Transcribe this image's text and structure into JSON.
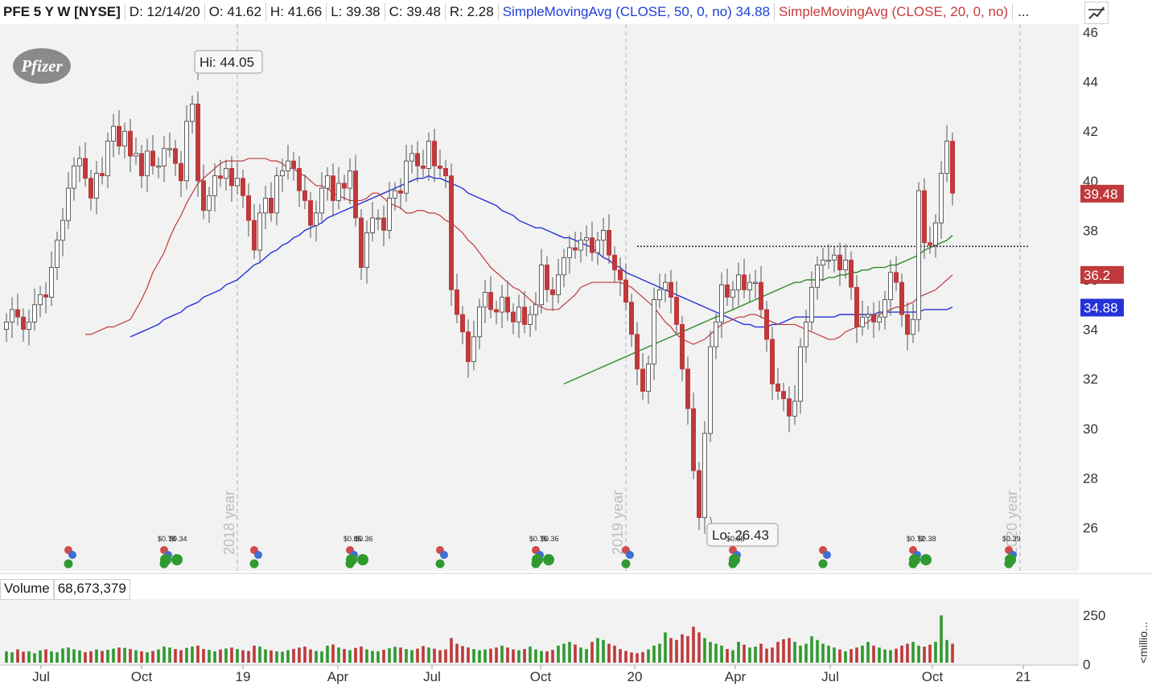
{
  "header": {
    "symbol": "PFE 5 Y W [NYSE]",
    "date": "D: 12/14/20",
    "open": "O: 41.62",
    "high": "H: 41.66",
    "low": "L: 39.38",
    "close": "C: 39.48",
    "range": "R: 2.28",
    "sma50_label": "SimpleMovingAvg (CLOSE, 50, 0, no)",
    "sma50_value": "34.88",
    "sma20_label": "SimpleMovingAvg (CLOSE, 20, 0, no)",
    "more": "..."
  },
  "logo_text": "Pfizer",
  "volume": {
    "label": "Volume",
    "value": "68,673,379",
    "unit": "<millio..."
  },
  "colors": {
    "up": "#2f9a2f",
    "down": "#c0393b",
    "sma20": "#c0393b",
    "sma50": "#2532d8",
    "sma200": "#2e8b2e",
    "panel_bg": "#f2f2f2"
  },
  "chart_data": {
    "type": "candlestick",
    "title": "PFE 5 Y W [NYSE]",
    "ylim": [
      24.8,
      46.4
    ],
    "y_ticks": [
      "26",
      "28",
      "30",
      "32",
      "34",
      "36",
      "38",
      "40",
      "42",
      "44",
      "46"
    ],
    "x_labels": [
      "Jul",
      "Oct",
      "19",
      "Apr",
      "Jul",
      "Oct",
      "20",
      "Apr",
      "Jul",
      "Oct",
      "21"
    ],
    "year_markers": [
      "2018 year",
      "2019 year",
      "2020 year"
    ],
    "annotations": {
      "high": "Hi: 44.05",
      "low": "Lo: 26.43"
    },
    "resistance_level": 37.35,
    "price_badges": [
      {
        "label": "39.48",
        "value": 39.48,
        "color": "#c0393b"
      },
      {
        "label": "36.2",
        "value": 36.2,
        "color": "#c0393b"
      },
      {
        "label": "34.88",
        "value": 34.88,
        "color": "#2532d8"
      }
    ],
    "dividends": [
      {
        "label": "$0.78",
        "period": 28
      },
      {
        "label": "$0.34",
        "period": 30
      },
      {
        "label": "$0.85",
        "period": 61
      },
      {
        "label": "$0.36",
        "period": 63
      },
      {
        "label": "$0.75",
        "period": 94
      },
      {
        "label": "$0.36",
        "period": 96
      },
      {
        "label": "$0.38",
        "period": 129
      },
      {
        "label": "$0.72",
        "period": 161
      },
      {
        "label": "$0.38",
        "period": 163
      },
      {
        "label": "$0.39",
        "period": 178
      }
    ],
    "earnings_periods": [
      11,
      28,
      44,
      61,
      77,
      94,
      110,
      129,
      145,
      161,
      178
    ],
    "volume_ticks": [
      "250",
      "0"
    ],
    "volume_ylim": [
      0,
      340
    ],
    "closes": [
      34.3,
      34.8,
      34.5,
      34.0,
      34.3,
      35.0,
      35.4,
      35.3,
      36.5,
      37.6,
      38.4,
      39.7,
      40.6,
      40.9,
      40.1,
      39.3,
      40.3,
      40.2,
      41.6,
      42.2,
      41.4,
      42.0,
      41.0,
      41.1,
      40.2,
      41.2,
      40.6,
      40.6,
      41.3,
      41.3,
      40.7,
      40.0,
      42.4,
      43.1,
      40.0,
      38.8,
      39.4,
      40.2,
      40.1,
      40.5,
      39.8,
      40.1,
      39.4,
      38.4,
      37.2,
      38.7,
      39.3,
      38.7,
      40.2,
      40.4,
      40.8,
      40.5,
      39.6,
      39.2,
      38.2,
      38.7,
      39.7,
      40.2,
      39.2,
      39.9,
      39.7,
      40.4,
      38.5,
      36.5,
      37.9,
      38.5,
      38.5,
      38.0,
      39.3,
      39.6,
      39.5,
      40.8,
      41.1,
      40.6,
      40.5,
      41.6,
      40.6,
      40.5,
      40.2,
      35.6,
      34.6,
      33.9,
      32.7,
      33.7,
      34.9,
      35.5,
      34.8,
      34.7,
      35.3,
      34.7,
      34.3,
      34.9,
      34.2,
      34.6,
      35.0,
      36.6,
      35.6,
      35.4,
      36.2,
      36.9,
      37.3,
      37.2,
      37.6,
      37.7,
      37.1,
      37.6,
      38.0,
      37.0,
      36.4,
      36.0,
      35.1,
      33.8,
      32.4,
      31.5,
      32.6,
      35.2,
      35.6,
      35.9,
      35.3,
      34.2,
      32.4,
      30.8,
      28.3,
      26.4,
      29.8,
      33.3,
      34.3,
      35.8,
      35.3,
      35.6,
      36.2,
      35.6,
      35.9,
      35.9,
      34.8,
      33.6,
      31.8,
      31.5,
      31.2,
      30.5,
      31.1,
      33.3,
      34.3,
      35.7,
      36.6,
      36.8,
      36.8,
      37.0,
      36.4,
      36.8,
      35.7,
      34.1,
      34.5,
      34.6,
      34.3,
      34.5,
      35.2,
      36.3,
      35.9,
      34.6,
      33.8,
      34.4,
      39.6,
      37.5,
      37.4,
      38.3,
      40.3,
      41.6,
      39.5
    ],
    "sma20": [
      33.8,
      33.8,
      33.9,
      34.0,
      34.1,
      34.1,
      34.2,
      34.3,
      34.4,
      34.8,
      35.2,
      35.7,
      36.3,
      36.7,
      37.1,
      37.7,
      38.2,
      38.6,
      39.1,
      39.5,
      39.9,
      40.1,
      40.3,
      40.5,
      40.7,
      40.8,
      40.8,
      40.8,
      40.8,
      40.9,
      40.9,
      40.9,
      40.9,
      40.8,
      40.8,
      40.7,
      40.5,
      40.5,
      40.3,
      40.2,
      40.0,
      39.8,
      39.8,
      39.7,
      39.5,
      39.4,
      39.3,
      39.2,
      39.2,
      39.2,
      39.3,
      39.5,
      39.5,
      39.3,
      39.1,
      39.0,
      38.9,
      38.7,
      38.7,
      38.8,
      38.8,
      38.7,
      38.7,
      38.6,
      38.4,
      38.3,
      38.1,
      37.9,
      37.6,
      37.4,
      37.1,
      36.8,
      36.5,
      36.3,
      36.1,
      35.9,
      35.7,
      35.6,
      35.4,
      35.2,
      35.0,
      34.9,
      34.8,
      34.8,
      34.8,
      35.0,
      35.2,
      35.4,
      35.7,
      35.8,
      35.9,
      35.9,
      35.9,
      35.9,
      35.9,
      35.9,
      35.8,
      35.7,
      35.5,
      35.3,
      35.1,
      34.9,
      34.6,
      34.3,
      34.1,
      33.8,
      33.6,
      33.5,
      33.4,
      33.5,
      33.6,
      33.8,
      34.0,
      34.2,
      34.3,
      34.4,
      34.5,
      34.5,
      34.6,
      34.6,
      34.5,
      34.4,
      34.3,
      34.2,
      34.2,
      34.2,
      34.2,
      34.1,
      34.0,
      33.9,
      33.8,
      33.7,
      33.6,
      33.6,
      33.7,
      33.9,
      34.0,
      34.1,
      34.2,
      34.3,
      34.5,
      34.6,
      34.7,
      34.8,
      34.9,
      34.9,
      35.0,
      35.1,
      35.3,
      35.4,
      35.5,
      35.6,
      35.8,
      36.0,
      36.2
    ],
    "sma50": [
      33.7,
      33.8,
      33.9,
      34.0,
      34.1,
      34.2,
      34.4,
      34.5,
      34.6,
      34.7,
      34.9,
      35.0,
      35.1,
      35.3,
      35.4,
      35.5,
      35.6,
      35.8,
      35.9,
      36.0,
      36.2,
      36.4,
      36.6,
      36.7,
      36.9,
      37.1,
      37.2,
      37.4,
      37.5,
      37.7,
      37.8,
      38.0,
      38.1,
      38.2,
      38.3,
      38.5,
      38.6,
      38.7,
      38.8,
      38.9,
      39.0,
      39.1,
      39.2,
      39.3,
      39.4,
      39.5,
      39.6,
      39.7,
      39.8,
      39.9,
      40.0,
      40.1,
      40.1,
      40.2,
      40.1,
      40.1,
      40.0,
      39.9,
      39.8,
      39.7,
      39.5,
      39.4,
      39.3,
      39.2,
      39.1,
      39.0,
      38.8,
      38.7,
      38.6,
      38.4,
      38.3,
      38.2,
      38.1,
      38.1,
      38.0,
      37.9,
      37.8,
      37.7,
      37.7,
      37.6,
      37.5,
      37.4,
      37.3,
      37.1,
      36.9,
      36.8,
      36.6,
      36.5,
      36.3,
      36.2,
      36.1,
      36.0,
      35.9,
      35.8,
      35.7,
      35.6,
      35.5,
      35.4,
      35.3,
      35.2,
      35.1,
      35.0,
      34.9,
      34.8,
      34.7,
      34.6,
      34.5,
      34.4,
      34.3,
      34.2,
      34.2,
      34.1,
      34.1,
      34.1,
      34.2,
      34.2,
      34.3,
      34.4,
      34.5,
      34.5,
      34.5,
      34.5,
      34.5,
      34.5,
      34.5,
      34.5,
      34.6,
      34.6,
      34.6,
      34.6,
      34.6,
      34.6,
      34.6,
      34.7,
      34.7,
      34.7,
      34.7,
      34.7,
      34.7,
      34.7,
      34.7,
      34.8,
      34.8,
      34.8,
      34.8,
      34.8,
      34.9
    ],
    "sma200": [
      31.8,
      31.9,
      32.0,
      32.1,
      32.2,
      32.3,
      32.4,
      32.5,
      32.6,
      32.7,
      32.8,
      32.9,
      33.0,
      33.1,
      33.2,
      33.3,
      33.4,
      33.5,
      33.6,
      33.7,
      33.8,
      33.9,
      34.0,
      34.1,
      34.2,
      34.3,
      34.4,
      34.5,
      34.6,
      34.7,
      34.8,
      34.9,
      35.0,
      35.1,
      35.2,
      35.3,
      35.4,
      35.5,
      35.6,
      35.7,
      35.8,
      35.9,
      35.9,
      36.0,
      36.0,
      36.0,
      36.0,
      36.1,
      36.1,
      36.2,
      36.2,
      36.3,
      36.3,
      36.4,
      36.4,
      36.5,
      36.5,
      36.5,
      36.6,
      36.6,
      36.7,
      36.8,
      36.9,
      37.0,
      37.2,
      37.3,
      37.4,
      37.5,
      37.6,
      37.8
    ],
    "volumes": [
      60,
      55,
      70,
      58,
      60,
      50,
      65,
      70,
      60,
      55,
      75,
      80,
      70,
      65,
      55,
      60,
      70,
      62,
      68,
      74,
      80,
      78,
      72,
      66,
      60,
      55,
      62,
      70,
      85,
      80,
      72,
      66,
      78,
      85,
      90,
      72,
      68,
      60,
      70,
      75,
      80,
      72,
      66,
      62,
      90,
      85,
      70,
      65,
      60,
      58,
      66,
      72,
      80,
      85,
      70,
      62,
      60,
      90,
      96,
      80,
      72,
      66,
      78,
      85,
      70,
      62,
      60,
      68,
      76,
      84,
      80,
      72,
      66,
      74,
      88,
      80,
      74,
      66,
      70,
      130,
      100,
      88,
      80,
      72,
      66,
      70,
      74,
      80,
      90,
      80,
      70,
      66,
      72,
      85,
      70,
      62,
      60,
      68,
      90,
      100,
      110,
      96,
      80,
      72,
      110,
      130,
      120,
      100,
      90,
      72,
      62,
      54,
      50,
      56,
      70,
      90,
      100,
      160,
      130,
      120,
      150,
      140,
      190,
      160,
      130,
      110,
      100,
      90,
      72,
      66,
      110,
      95,
      80,
      85,
      100,
      74,
      80,
      110,
      124,
      130,
      110,
      90,
      100,
      140,
      120,
      100,
      90,
      80,
      70,
      60,
      72,
      80,
      90,
      110,
      90,
      80,
      70,
      66,
      74,
      90,
      100,
      110,
      90,
      85,
      95,
      110,
      250,
      120,
      100,
      160,
      150,
      70,
      40
    ]
  }
}
